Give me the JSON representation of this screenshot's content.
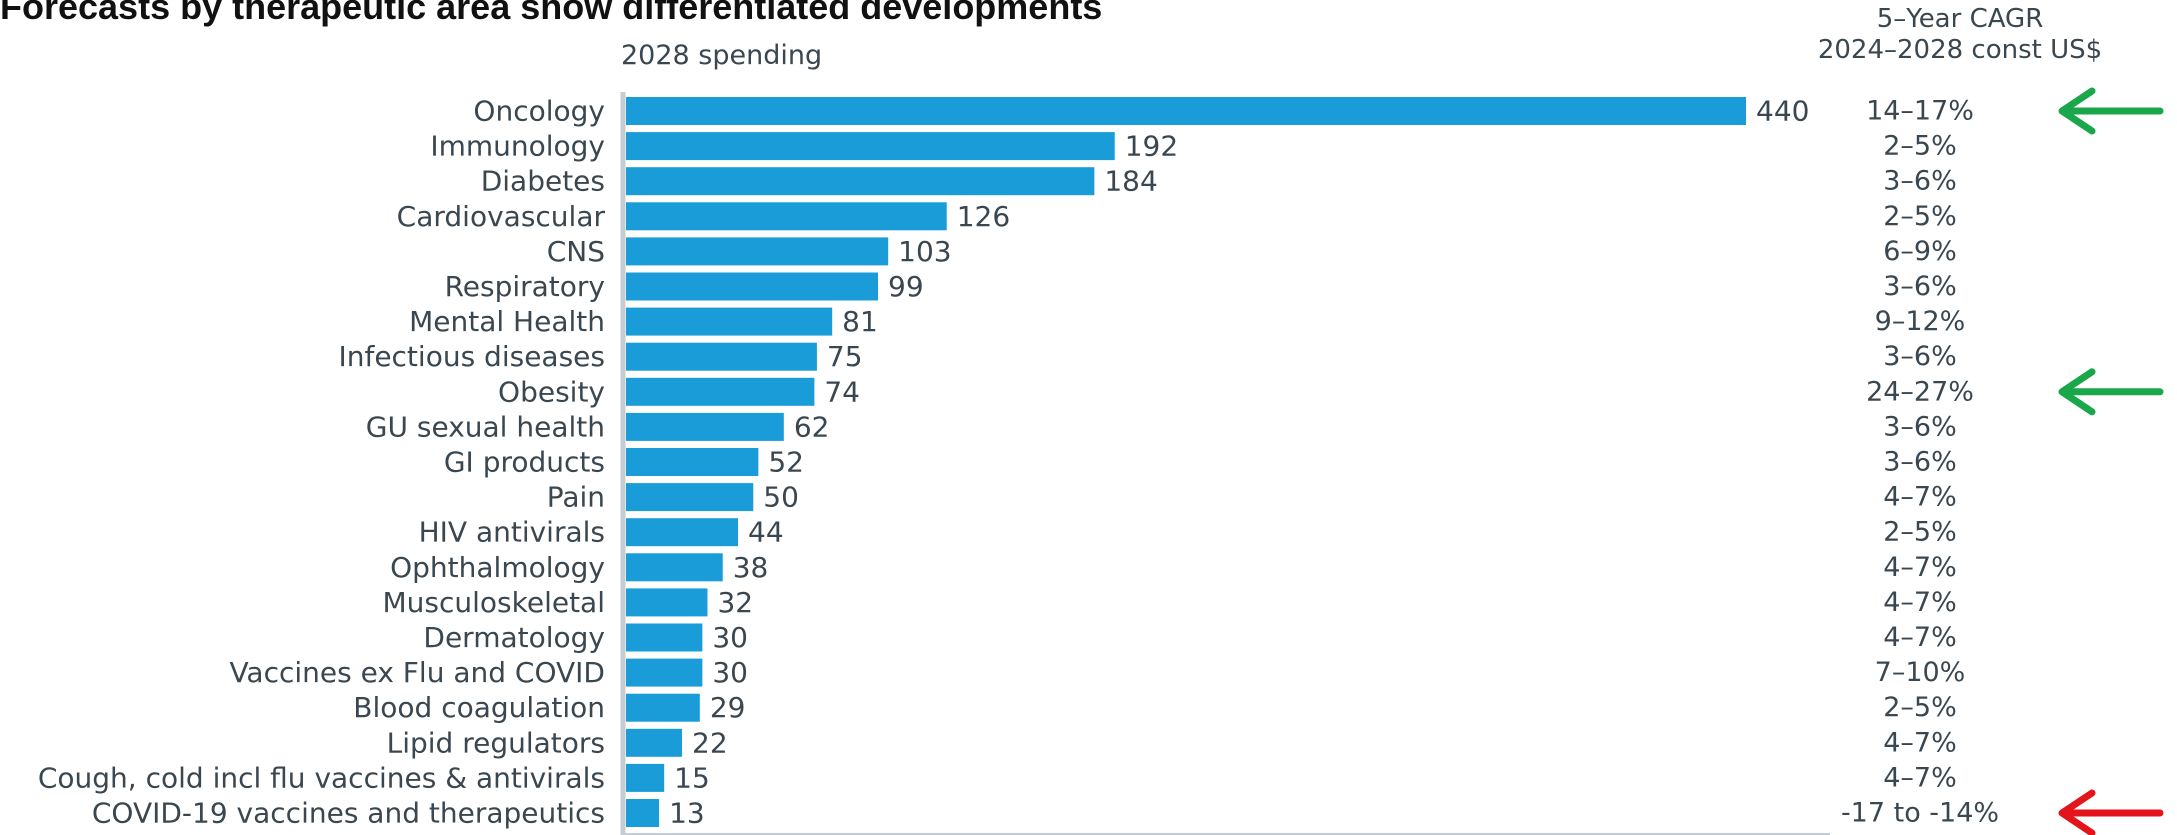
{
  "title": "Forecasts by therapeutic area show differentiated developments",
  "column_headers": {
    "spending": "2028 spending",
    "cagr_line1": "5–Year CAGR",
    "cagr_line2": "2024–2028 const US$"
  },
  "colors": {
    "bar": "#1a9cd8",
    "text": "#3b4750",
    "axis": "#c5cdd3",
    "arrow_up": "#1aa64a",
    "arrow_down": "#e3141b"
  },
  "chart_data": {
    "type": "bar",
    "orientation": "horizontal",
    "title": "Forecasts by therapeutic area show differentiated developments",
    "categories": [
      "Oncology",
      "Immunology",
      "Diabetes",
      "Cardiovascular",
      "CNS",
      "Respiratory",
      "Mental Health",
      "Infectious diseases",
      "Obesity",
      "GU sexual health",
      "GI products",
      "Pain",
      "HIV antivirals",
      "Ophthalmology",
      "Musculoskeletal",
      "Dermatology",
      "Vaccines ex Flu and COVID",
      "Blood coagulation",
      "Lipid regulators",
      "Cough, cold incl flu vaccines & antivirals",
      "COVID-19 vaccines and therapeutics"
    ],
    "series": [
      {
        "name": "2028 spending",
        "values": [
          440,
          192,
          184,
          126,
          103,
          99,
          81,
          75,
          74,
          62,
          52,
          50,
          44,
          38,
          32,
          30,
          30,
          29,
          22,
          15,
          13
        ]
      }
    ],
    "cagr": [
      "14–17%",
      "2–5%",
      "3–6%",
      "2–5%",
      "6–9%",
      "3–6%",
      "9–12%",
      "3–6%",
      "24–27%",
      "3–6%",
      "3–6%",
      "4–7%",
      "2–5%",
      "4–7%",
      "4–7%",
      "4–7%",
      "7–10%",
      "2–5%",
      "4–7%",
      "4–7%",
      "-17 to -14%"
    ],
    "highlight_arrows": [
      {
        "category": "Oncology",
        "color": "green"
      },
      {
        "category": "Obesity",
        "color": "green"
      },
      {
        "category": "COVID-19 vaccines and therapeutics",
        "color": "red"
      }
    ],
    "xlim": [
      0,
      480
    ],
    "grid": false,
    "legend": "none"
  }
}
